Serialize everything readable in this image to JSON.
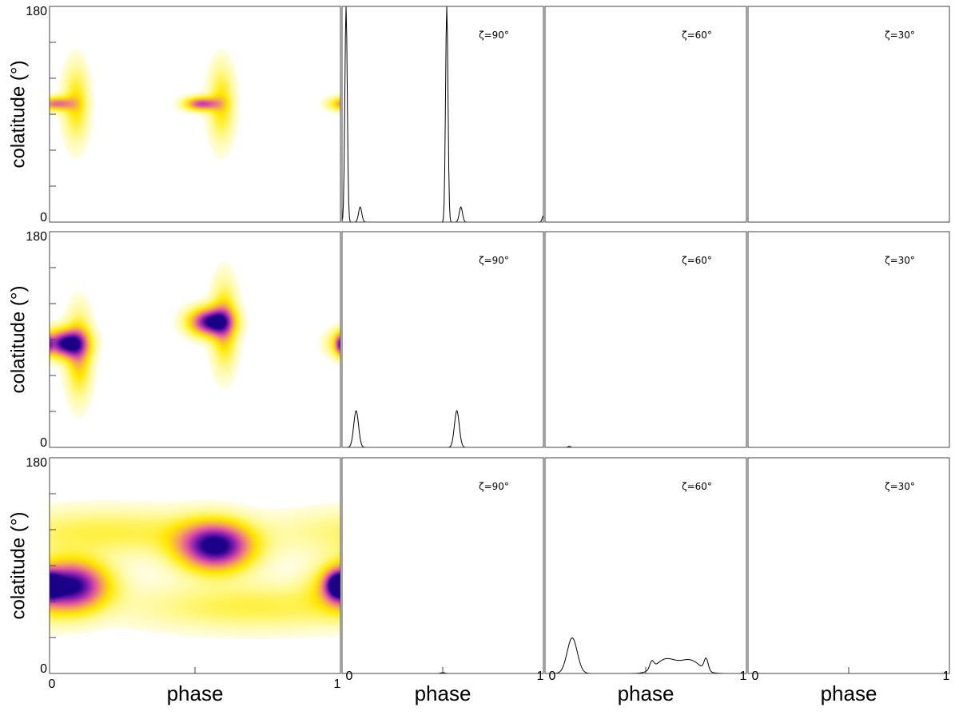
{
  "chart_data": {
    "type": "figure-grid",
    "rows": 3,
    "columns": 4,
    "ylabel": "colatitude (°)",
    "xlabel": "phase",
    "y_ticks": {
      "min": "0",
      "max": "180"
    },
    "x_ticks": {
      "start": "0",
      "end": "1"
    },
    "map_colormap": [
      "#ffffff",
      "#fff88a",
      "#ffe800",
      "#f4a35a",
      "#e0559c",
      "#8a1fb0",
      "#1a0088"
    ],
    "zeta_labels": [
      "ζ=90°",
      "ζ=60°",
      "ζ=30°"
    ],
    "maps": [
      {
        "row": 1,
        "blobs": [
          {
            "phase": 0.02,
            "colatitude": 99,
            "phase_width": 0.04,
            "colat_width": 4,
            "peak": 0.6
          },
          {
            "phase": 0.09,
            "colatitude": 99,
            "phase_width": 0.03,
            "colat_width": 22,
            "peak": 0.35
          },
          {
            "phase": 0.52,
            "colatitude": 99,
            "phase_width": 0.04,
            "colat_width": 4,
            "peak": 0.7
          },
          {
            "phase": 0.59,
            "colatitude": 99,
            "phase_width": 0.03,
            "colat_width": 22,
            "peak": 0.35
          }
        ]
      },
      {
        "row": 2,
        "blobs": [
          {
            "phase": 0.05,
            "colatitude": 87,
            "phase_width": 0.05,
            "colat_width": 8,
            "peak": 0.95
          },
          {
            "phase": 0.1,
            "colatitude": 78,
            "phase_width": 0.03,
            "colat_width": 24,
            "peak": 0.45
          },
          {
            "phase": 0.55,
            "colatitude": 105,
            "phase_width": 0.05,
            "colat_width": 8,
            "peak": 0.95
          },
          {
            "phase": 0.6,
            "colatitude": 102,
            "phase_width": 0.03,
            "colat_width": 24,
            "peak": 0.45
          },
          {
            "phase": 0.995,
            "colatitude": 86,
            "phase_width": 0.01,
            "colat_width": 6,
            "peak": 0.35
          }
        ]
      },
      {
        "row": 3,
        "blobs": [
          {
            "phase": 0.07,
            "colatitude": 74,
            "phase_width": 0.09,
            "colat_width": 14,
            "peak": 1.0
          },
          {
            "phase": 0.57,
            "colatitude": 106,
            "phase_width": 0.09,
            "colat_width": 14,
            "peak": 1.0
          },
          {
            "phase": 0.2,
            "colatitude": 118,
            "phase_width": 0.3,
            "colat_width": 14,
            "peak": 0.25
          },
          {
            "phase": 0.7,
            "colatitude": 56,
            "phase_width": 0.3,
            "colat_width": 14,
            "peak": 0.25
          },
          {
            "phase": 0.99,
            "colatitude": 74,
            "phase_width": 0.03,
            "colat_width": 8,
            "peak": 0.7
          }
        ]
      }
    ],
    "profiles": [
      {
        "row": 1,
        "zeta": "ζ=90°",
        "peaks": [
          {
            "phase": 0.02,
            "height": 1.0,
            "width": 0.006
          },
          {
            "phase": 0.09,
            "height": 0.07,
            "width": 0.008
          },
          {
            "phase": 0.52,
            "height": 1.0,
            "width": 0.006
          },
          {
            "phase": 0.59,
            "height": 0.07,
            "width": 0.008
          },
          {
            "phase": 1.0,
            "height": 0.03,
            "width": 0.006
          }
        ]
      },
      {
        "row": 1,
        "zeta": "ζ=60°",
        "peaks": []
      },
      {
        "row": 1,
        "zeta": "ζ=30°",
        "peaks": []
      },
      {
        "row": 2,
        "zeta": "ζ=90°",
        "peaks": [
          {
            "phase": 0.07,
            "height": 0.17,
            "width": 0.012
          },
          {
            "phase": 0.57,
            "height": 0.17,
            "width": 0.012
          }
        ]
      },
      {
        "row": 2,
        "zeta": "ζ=60°",
        "peaks": [
          {
            "phase": 0.12,
            "height": 0.005,
            "width": 0.006
          }
        ]
      },
      {
        "row": 2,
        "zeta": "ζ=30°",
        "peaks": []
      },
      {
        "row": 3,
        "zeta": "ζ=90°",
        "peaks": [
          {
            "phase": 0.5,
            "height": 0.004,
            "width": 0.01
          }
        ]
      },
      {
        "row": 3,
        "zeta": "ζ=60°",
        "peaks": [
          {
            "phase": 0.135,
            "height": 0.165,
            "width": 0.025
          },
          {
            "phase": 0.53,
            "height": 0.035,
            "width": 0.01
          },
          {
            "phase": 0.6,
            "height": 0.065,
            "width": 0.05
          },
          {
            "phase": 0.72,
            "height": 0.06,
            "width": 0.05
          },
          {
            "phase": 0.8,
            "height": 0.055,
            "width": 0.01
          }
        ]
      },
      {
        "row": 3,
        "zeta": "ζ=30°",
        "peaks": []
      }
    ]
  }
}
